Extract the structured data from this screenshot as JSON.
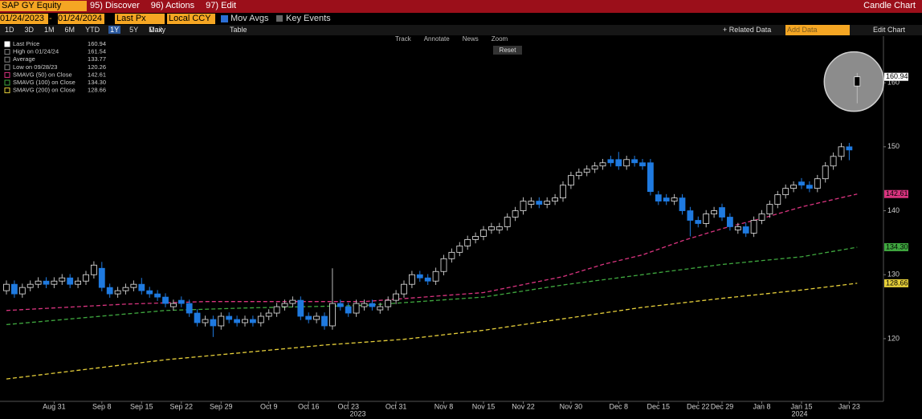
{
  "ui": {
    "ticker": "SAP GY Equity",
    "menus": [
      "95) Discover",
      "96) Actions",
      "97) Edit"
    ],
    "chart_kind": "Candle Chart",
    "start_date": "01/24/2023",
    "end_date": "01/24/2024",
    "field": "Last Px",
    "currency": "Local CCY",
    "mov_avgs": "Mov Avgs",
    "key_events": "Key Events",
    "periods": [
      "1D",
      "3D",
      "1M",
      "6M",
      "YTD",
      "1Y",
      "5Y",
      "Max"
    ],
    "frequency": "Daily",
    "table": "Table",
    "related": "+ Related Data",
    "add_data": "Add Data",
    "edit_chart": "Edit Chart",
    "tools": [
      "Track",
      "Annotate",
      "News",
      "Zoom"
    ],
    "reset": "Reset"
  },
  "chart_data": {
    "type": "candlestick",
    "categories": [
      null,
      null,
      null,
      null,
      null,
      null,
      "Aug 31",
      null,
      null,
      null,
      null,
      null,
      "Sep 8",
      null,
      null,
      null,
      null,
      "Sep 15",
      null,
      null,
      null,
      null,
      "Sep 22",
      null,
      null,
      null,
      null,
      "Sep 29",
      null,
      null,
      null,
      null,
      null,
      "Oct 9",
      null,
      null,
      null,
      null,
      "Oct 16",
      null,
      null,
      null,
      null,
      "Oct 23",
      null,
      null,
      null,
      null,
      null,
      "Oct 31",
      null,
      null,
      null,
      null,
      null,
      "Nov 8",
      null,
      null,
      null,
      null,
      "Nov 15",
      null,
      null,
      null,
      null,
      "Nov 22",
      null,
      null,
      null,
      null,
      null,
      "Nov 30",
      null,
      null,
      null,
      null,
      null,
      "Dec 8",
      null,
      null,
      null,
      null,
      "Dec 15",
      null,
      null,
      null,
      null,
      "Dec 22",
      null,
      null,
      "Dec 29",
      null,
      null,
      null,
      null,
      "Jan 8",
      null,
      null,
      null,
      null,
      "Jan 15",
      null,
      null,
      null,
      null,
      null,
      "Jan 23",
      null
    ],
    "year_labels": [
      "2023",
      "2024"
    ],
    "open": [
      127.5,
      128.5,
      127,
      128,
      128.5,
      129,
      128.5,
      129,
      129.5,
      128.5,
      129,
      130,
      131,
      128,
      127,
      127.5,
      128,
      128.5,
      127.5,
      127,
      126.5,
      125,
      126,
      125.5,
      124,
      122.5,
      123,
      122,
      123.5,
      123,
      122.5,
      123,
      122.5,
      123.5,
      124,
      125,
      125.5,
      126,
      123.5,
      123,
      123.5,
      122,
      125.5,
      125,
      124,
      125,
      125.5,
      124.5,
      125,
      126,
      127,
      128.5,
      130,
      129.5,
      129,
      130.5,
      132.5,
      133.5,
      134.5,
      135.5,
      136,
      137,
      137,
      137.5,
      139,
      140,
      141,
      141.5,
      141,
      141.5,
      142,
      144,
      145.5,
      146,
      146.5,
      147,
      148,
      148,
      147,
      148,
      147.5,
      147.5,
      142.5,
      142,
      141.5,
      142,
      140,
      138.5,
      138,
      139.5,
      140.5,
      139,
      137,
      137.5,
      136.5,
      138.5,
      139.5,
      141,
      142.5,
      143.5,
      144.5,
      144,
      143.5,
      145,
      147,
      148.5,
      150,
      159.5
    ],
    "high": [
      129.1,
      129.1,
      128.6,
      129.1,
      129.6,
      129.6,
      129.6,
      130.1,
      130.1,
      129.6,
      130.6,
      132.1,
      132,
      128.6,
      128.1,
      128.6,
      129.1,
      129.5,
      128.1,
      127.6,
      127.1,
      126.1,
      126.6,
      126.1,
      124.6,
      123.6,
      123.6,
      124.1,
      124.1,
      123.6,
      123.6,
      123.6,
      124.1,
      124.6,
      125.6,
      126.1,
      126.6,
      126.6,
      124.1,
      124.1,
      124.1,
      131,
      126.1,
      125.6,
      126.1,
      126.1,
      126.1,
      125.6,
      126.6,
      127.6,
      129.1,
      130.6,
      130.6,
      130.1,
      131.1,
      133.1,
      134.1,
      135.1,
      136.1,
      136.6,
      137.6,
      138.1,
      138.1,
      139.6,
      140.6,
      142.1,
      142.1,
      142.1,
      142.1,
      142.6,
      144.6,
      146.1,
      146.6,
      147.1,
      147.6,
      148.1,
      148.6,
      149.2,
      148.6,
      148.6,
      148.1,
      148.1,
      143.1,
      142.6,
      142.6,
      142.6,
      140.6,
      139.1,
      140.1,
      140.6,
      141.1,
      139.6,
      138.1,
      138.1,
      139.1,
      140.1,
      141.6,
      143.1,
      144.1,
      144.6,
      145.1,
      144.6,
      145.6,
      147.6,
      149.1,
      150.6,
      150.6,
      161.54
    ],
    "low": [
      126.9,
      126.4,
      126.4,
      127.4,
      127.9,
      127.9,
      127.9,
      128.4,
      127.9,
      127.9,
      128.4,
      129.4,
      127.4,
      126.4,
      126.4,
      126.9,
      127.4,
      126.9,
      126.4,
      125.9,
      124.9,
      124.4,
      124.9,
      123.4,
      121.9,
      121.9,
      120.26,
      121.4,
      122.4,
      121.9,
      121.9,
      121.9,
      121.9,
      122.9,
      123.4,
      124.4,
      124.9,
      122.9,
      122.4,
      122.4,
      121.4,
      121.4,
      124.4,
      123.4,
      123.4,
      124.4,
      124.4,
      123.9,
      124.4,
      125.4,
      126.4,
      127.9,
      128.9,
      128.4,
      128.4,
      129.9,
      131.9,
      132.9,
      133.9,
      134.9,
      135.4,
      136.4,
      136.4,
      136.9,
      138.4,
      139.4,
      140.4,
      140.4,
      140.4,
      140.9,
      141.4,
      143.4,
      144.9,
      145.4,
      145.9,
      146.4,
      146.9,
      146.4,
      146.4,
      146.9,
      146.4,
      142.4,
      140.9,
      140.9,
      140.9,
      139.4,
      136,
      137.4,
      137.4,
      138.9,
      138.4,
      136.9,
      136.4,
      135.9,
      135.9,
      137.9,
      138.9,
      140.4,
      141.9,
      142.9,
      143.4,
      142.9,
      142.9,
      144.4,
      146.4,
      147.9,
      147.9,
      156.8
    ],
    "close": [
      128.5,
      127,
      128,
      128.5,
      129,
      128.5,
      129,
      129.5,
      128.5,
      129,
      130,
      131.5,
      128,
      127,
      127.5,
      128,
      128.5,
      127.5,
      127,
      126.5,
      125.5,
      125.5,
      125.5,
      124,
      122.5,
      123,
      122,
      123.5,
      123,
      122.5,
      123,
      122.5,
      123.5,
      124,
      125,
      125.5,
      126,
      123.5,
      123,
      123.5,
      122,
      125.5,
      125,
      124,
      125.5,
      125.5,
      125,
      125,
      126,
      127,
      128.5,
      130,
      129.5,
      129,
      130.5,
      132.5,
      133.5,
      134.5,
      135.5,
      136,
      137,
      137.5,
      137.5,
      139,
      140,
      141.5,
      141.5,
      141,
      141.5,
      142,
      144,
      145.5,
      146,
      146.5,
      147,
      147.5,
      147.5,
      147,
      148,
      147.5,
      147,
      143,
      141.5,
      141.5,
      142,
      140,
      138.5,
      138,
      139.5,
      140,
      139,
      137.5,
      137.5,
      136.5,
      138.5,
      139.5,
      141,
      142.5,
      143.5,
      144,
      144,
      143.5,
      145,
      147,
      148.5,
      150,
      149.5,
      160.94
    ],
    "up_color": "#e8e8e8",
    "down_color": "#1f7ae0",
    "lines": [
      {
        "name": "SMAVG (50)  on Close",
        "color": "#d9347f",
        "x": [
          0,
          15,
          25,
          45,
          60,
          70,
          75,
          80,
          85,
          90,
          95,
          100,
          107
        ],
        "values": [
          124.4,
          125.4,
          125.8,
          125.8,
          127.2,
          129.7,
          131.6,
          133.1,
          135.3,
          137.2,
          138.8,
          140.6,
          142.61
        ],
        "last_label": "142.61"
      },
      {
        "name": "SMAVG (100)  on Close",
        "color": "#3fa83f",
        "x": [
          0,
          20,
          30,
          45,
          60,
          70,
          80,
          90,
          100,
          107
        ],
        "values": [
          122.2,
          124.4,
          124.8,
          125.2,
          126.5,
          128.4,
          130,
          131.6,
          132.8,
          134.3
        ],
        "last_label": "134.30"
      },
      {
        "name": "SMAVG (200)  on Close",
        "color": "#e6cf3a",
        "x": [
          0,
          20,
          40,
          50,
          60,
          70,
          80,
          90,
          100,
          107
        ],
        "values": [
          113.7,
          116.7,
          119,
          119.9,
          121.3,
          123.1,
          124.9,
          126.3,
          127.6,
          128.66
        ],
        "last_label": "128.66"
      }
    ],
    "stats": [
      {
        "label": "Last Price",
        "value": 160.94
      },
      {
        "label": "High on 01/24/24",
        "value": 161.54
      },
      {
        "label": "Average",
        "value": 133.77
      },
      {
        "label": "Low on 09/28/23",
        "value": 120.26
      }
    ],
    "ylim": [
      110.2,
      167.3
    ],
    "yticks": [
      120,
      130,
      140,
      150,
      160
    ]
  }
}
